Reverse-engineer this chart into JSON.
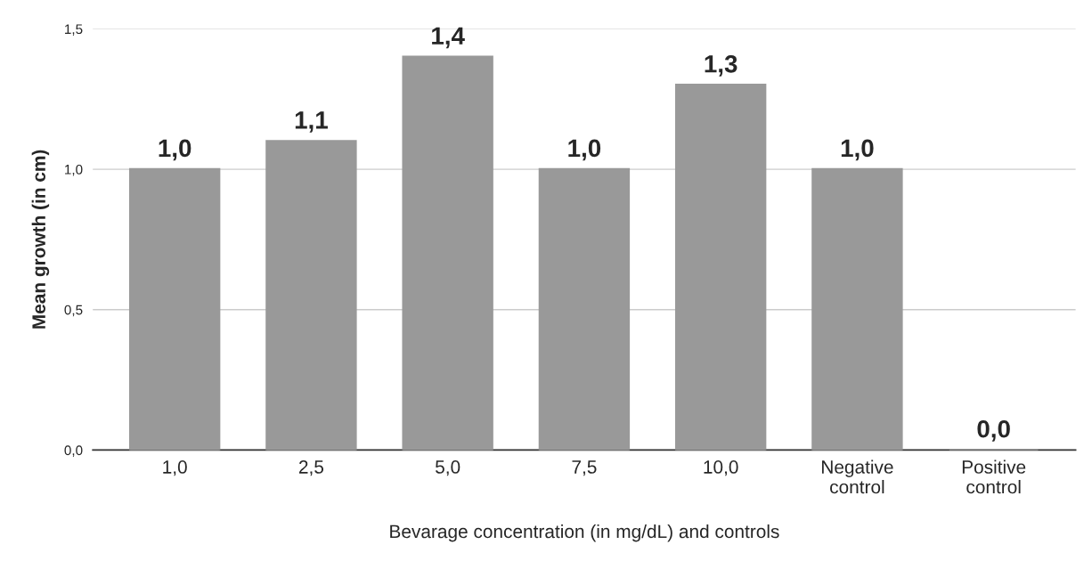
{
  "chart_data": {
    "type": "bar",
    "xlabel": "Bevarage concentration (in mg/dL) and controls",
    "ylabel": "Mean growth (in cm)",
    "categories": [
      "1,0",
      "2,5",
      "5,0",
      "7,5",
      "10,0",
      "Negative\ncontrol",
      "Positive\ncontrol"
    ],
    "values": [
      1.0,
      1.1,
      1.4,
      1.0,
      1.3,
      1.0,
      0.0
    ],
    "value_labels": [
      "1,0",
      "1,1",
      "1,4",
      "1,0",
      "1,3",
      "1,0",
      "0,0"
    ],
    "color": "#999999",
    "ylim": [
      0,
      1.5
    ],
    "yticks": [
      {
        "value": 0,
        "label": "0,0"
      },
      {
        "value": 0.5,
        "label": "0,5"
      },
      {
        "value": 1.0,
        "label": "1,0"
      },
      {
        "value": 1.5,
        "label": "1,5"
      }
    ],
    "grid": "y"
  }
}
